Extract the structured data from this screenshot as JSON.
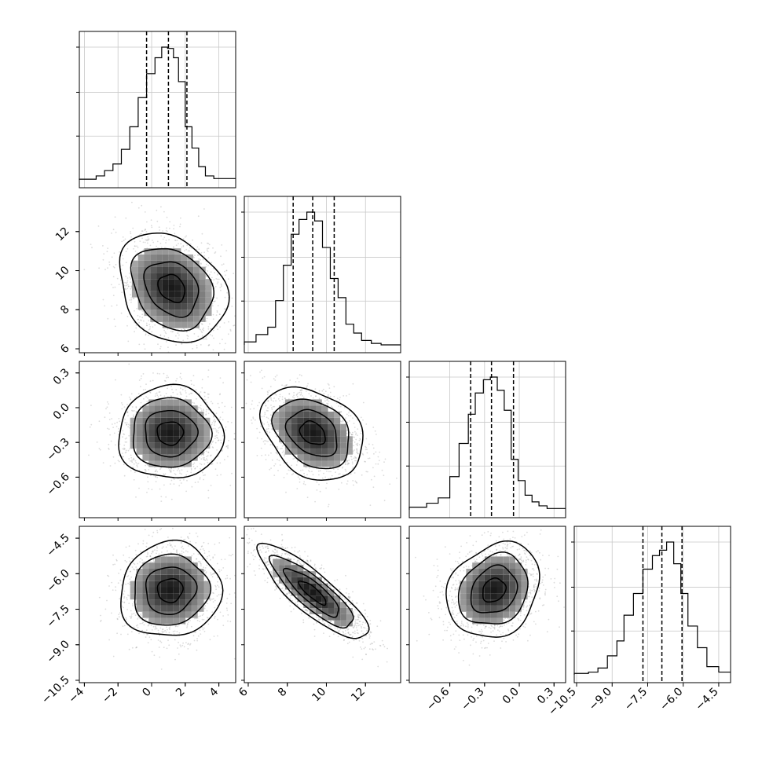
{
  "chart_data": {
    "type": "corner",
    "params": [
      {
        "id": "p0",
        "ticks": [
          -4,
          -2,
          0,
          2,
          4
        ],
        "tick_labels": [
          "−4",
          "−2",
          "0",
          "2",
          "4"
        ],
        "range": [
          -4.3,
          5.0
        ],
        "quantiles": [
          -0.3,
          1.0,
          2.1
        ]
      },
      {
        "id": "p1",
        "ticks": [
          6,
          8,
          10,
          12
        ],
        "tick_labels": [
          "6",
          "8",
          "10",
          "12"
        ],
        "range": [
          5.8,
          13.8
        ],
        "quantiles": [
          8.3,
          9.3,
          10.4
        ]
      },
      {
        "id": "p2",
        "ticks": [
          -0.6,
          -0.3,
          0.0,
          0.3
        ],
        "tick_labels": [
          "−0.6",
          "−0.3",
          "0.0",
          "0.3"
        ],
        "range": [
          -0.95,
          0.4
        ],
        "quantiles": [
          -0.42,
          -0.24,
          -0.05
        ]
      },
      {
        "id": "p3",
        "ticks": [
          -10.5,
          -9.0,
          -7.5,
          -6.0,
          -4.5
        ],
        "tick_labels": [
          "−10.5",
          "−9.0",
          "−7.5",
          "−6.0",
          "−4.5"
        ],
        "range": [
          -10.6,
          -4.0
        ],
        "quantiles": [
          -7.7,
          -6.9,
          -6.05
        ]
      }
    ],
    "histograms": [
      {
        "param": "p0",
        "edges": [
          -4.3,
          -3.3,
          -2.8,
          -2.3,
          -1.8,
          -1.3,
          -0.8,
          -0.3,
          0.2,
          0.6,
          0.95,
          1.3,
          1.6,
          2.0,
          2.4,
          2.8,
          3.2,
          3.7,
          5.0
        ],
        "counts": [
          0.5,
          3,
          7,
          12,
          23,
          40,
          62,
          80,
          92,
          100,
          99,
          92,
          74,
          40,
          24,
          10,
          3,
          1
        ]
      },
      {
        "param": "p1",
        "edges": [
          5.8,
          6.4,
          7.0,
          7.4,
          7.8,
          8.2,
          8.6,
          9.0,
          9.4,
          9.8,
          10.2,
          10.6,
          11.0,
          11.4,
          11.8,
          12.3,
          12.8,
          13.8
        ],
        "counts": [
          2,
          7,
          12,
          30,
          54,
          75,
          85,
          90,
          84,
          66,
          45,
          32,
          14,
          8,
          3,
          1,
          0
        ]
      },
      {
        "param": "p2",
        "edges": [
          -0.95,
          -0.8,
          -0.7,
          -0.6,
          -0.52,
          -0.44,
          -0.38,
          -0.31,
          -0.25,
          -0.19,
          -0.13,
          -0.07,
          -0.01,
          0.05,
          0.11,
          0.17,
          0.24,
          0.4
        ],
        "counts": [
          2,
          5,
          9,
          25,
          50,
          72,
          88,
          98,
          100,
          90,
          75,
          38,
          22,
          11,
          6,
          3,
          1
        ]
      },
      {
        "param": "p3",
        "edges": [
          -10.6,
          -10.0,
          -9.6,
          -9.2,
          -8.8,
          -8.5,
          -8.1,
          -7.7,
          -7.3,
          -7.0,
          -6.7,
          -6.4,
          -6.1,
          -5.8,
          -5.4,
          -5.0,
          -4.5,
          -4.0
        ],
        "counts": [
          1,
          2,
          5,
          14,
          25,
          44,
          60,
          78,
          88,
          92,
          98,
          82,
          60,
          36,
          20,
          6,
          2
        ]
      }
    ],
    "pairs": [
      {
        "row": "p1",
        "col": "p0",
        "center": [
          1.2,
          9.1
        ],
        "sd": [
          1.6,
          1.4
        ],
        "rho": -0.25
      },
      {
        "row": "p2",
        "col": "p0",
        "center": [
          1.1,
          -0.22
        ],
        "sd": [
          1.55,
          0.2
        ],
        "rho": 0.0
      },
      {
        "row": "p2",
        "col": "p1",
        "center": [
          9.3,
          -0.22
        ],
        "sd": [
          1.3,
          0.2
        ],
        "rho": -0.3
      },
      {
        "row": "p3",
        "col": "p0",
        "center": [
          1.1,
          -6.7
        ],
        "sd": [
          1.5,
          1.0
        ],
        "rho": 0.05
      },
      {
        "row": "p3",
        "col": "p1",
        "center": [
          9.3,
          -6.8
        ],
        "sd": [
          1.4,
          1.0
        ],
        "rho": -0.85
      },
      {
        "row": "p3",
        "col": "p2",
        "center": [
          -0.22,
          -6.7
        ],
        "sd": [
          0.2,
          1.0
        ],
        "rho": 0.2
      }
    ],
    "contour_levels": [
      0.5,
      1.0,
      1.5,
      2.0
    ],
    "grid": true
  }
}
